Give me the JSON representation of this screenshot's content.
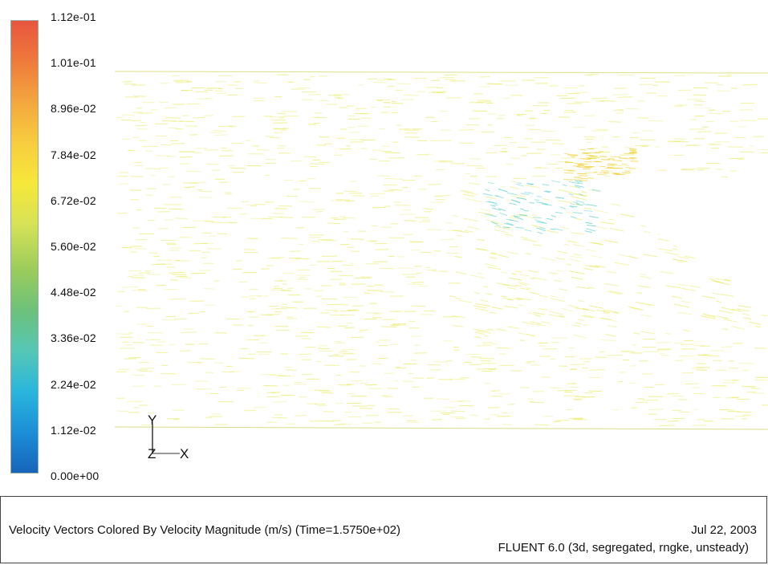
{
  "colorbar": {
    "labels": [
      "1.12e-01",
      "1.01e-01",
      "8.96e-02",
      "7.84e-02",
      "6.72e-02",
      "5.60e-02",
      "4.48e-02",
      "3.36e-02",
      "2.24e-02",
      "1.12e-02",
      "0.00e+00"
    ],
    "colors_top_to_bottom": [
      "#e8553e",
      "#ef7a3c",
      "#f3a73e",
      "#f7cd3f",
      "#f6e83a",
      "#d7e256",
      "#9ccc5c",
      "#6dc17a",
      "#56c7b6",
      "#2ab6dc",
      "#1c8fd6",
      "#1664b8"
    ]
  },
  "axes": {
    "vertical": "Y",
    "horizontal": "X",
    "depth": "Z"
  },
  "caption": {
    "title": "Velocity Vectors Colored By Velocity Magnitude (m/s)  (Time=1.5750e+02)",
    "date": "Jul 22, 2003",
    "solver": "FLUENT 6.0 (3d, segregated, rngke, unsteady)"
  },
  "vector_field": {
    "background_color": "#e8e85a",
    "wake_color": "#66d4d0",
    "stall_color": "#f2d23a"
  }
}
